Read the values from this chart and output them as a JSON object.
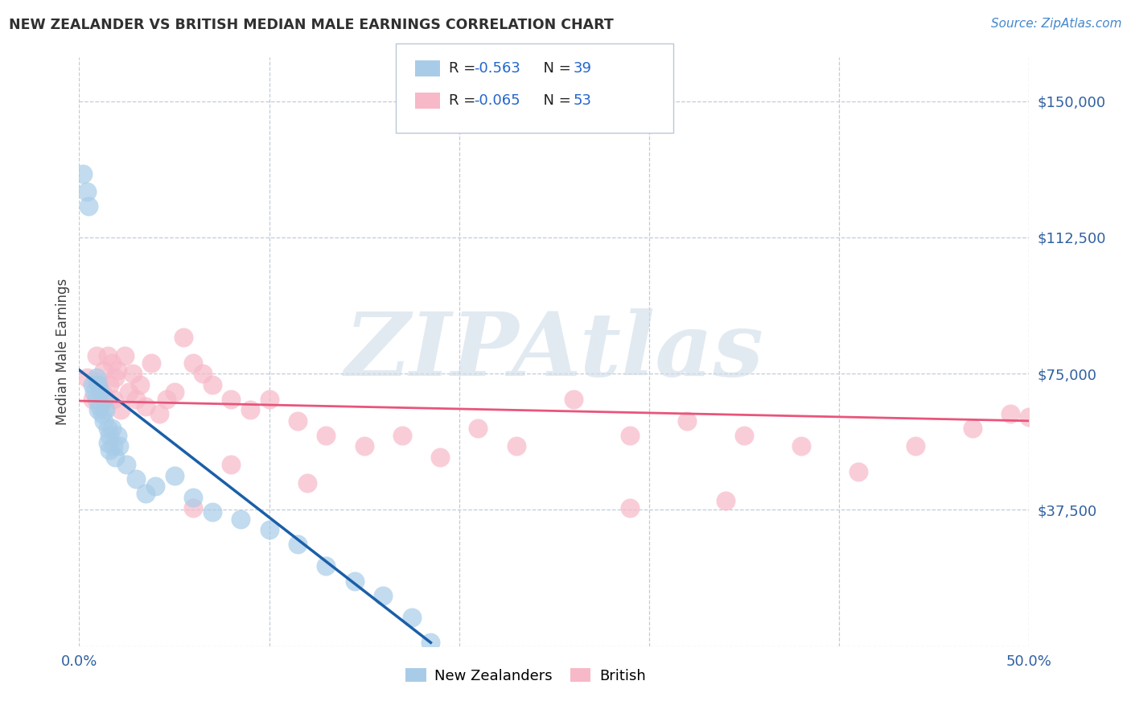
{
  "title": "NEW ZEALANDER VS BRITISH MEDIAN MALE EARNINGS CORRELATION CHART",
  "source": "Source: ZipAtlas.com",
  "ylabel": "Median Male Earnings",
  "xlim": [
    0.0,
    0.5
  ],
  "ylim": [
    0,
    162000
  ],
  "yticks": [
    0,
    37500,
    75000,
    112500,
    150000
  ],
  "ytick_labels": [
    "",
    "$37,500",
    "$75,000",
    "$112,500",
    "$150,000"
  ],
  "xticks": [
    0.0,
    0.1,
    0.2,
    0.3,
    0.4,
    0.5
  ],
  "xtick_labels": [
    "0.0%",
    "",
    "",
    "",
    "",
    "50.0%"
  ],
  "nz_color": "#a8cce8",
  "british_color": "#f7b8c8",
  "nz_line_color": "#1a5fa8",
  "british_line_color": "#e8557a",
  "background_color": "#ffffff",
  "watermark": "ZIPAtlas",
  "watermark_color": "#d0dce8",
  "nz_x": [
    0.002,
    0.004,
    0.005,
    0.007,
    0.008,
    0.009,
    0.009,
    0.01,
    0.01,
    0.011,
    0.011,
    0.012,
    0.013,
    0.013,
    0.014,
    0.015,
    0.015,
    0.016,
    0.016,
    0.017,
    0.018,
    0.019,
    0.02,
    0.021,
    0.025,
    0.03,
    0.035,
    0.04,
    0.05,
    0.06,
    0.07,
    0.085,
    0.1,
    0.115,
    0.13,
    0.145,
    0.16,
    0.175,
    0.185
  ],
  "nz_y": [
    130000,
    125000,
    121000,
    72000,
    70000,
    74000,
    68000,
    72000,
    65000,
    70000,
    66000,
    64000,
    68000,
    62000,
    65000,
    60000,
    56000,
    58000,
    54000,
    60000,
    55000,
    52000,
    58000,
    55000,
    50000,
    46000,
    42000,
    44000,
    47000,
    41000,
    37000,
    35000,
    32000,
    28000,
    22000,
    18000,
    14000,
    8000,
    1000
  ],
  "br_x": [
    0.004,
    0.007,
    0.009,
    0.01,
    0.012,
    0.013,
    0.014,
    0.015,
    0.016,
    0.017,
    0.018,
    0.019,
    0.02,
    0.022,
    0.024,
    0.026,
    0.028,
    0.03,
    0.032,
    0.035,
    0.038,
    0.042,
    0.046,
    0.05,
    0.055,
    0.06,
    0.065,
    0.07,
    0.08,
    0.09,
    0.1,
    0.115,
    0.13,
    0.15,
    0.17,
    0.19,
    0.21,
    0.23,
    0.26,
    0.29,
    0.32,
    0.35,
    0.38,
    0.41,
    0.44,
    0.47,
    0.34,
    0.29,
    0.12,
    0.08,
    0.06,
    0.49,
    0.5
  ],
  "br_y": [
    74000,
    68000,
    80000,
    72000,
    70000,
    76000,
    68000,
    80000,
    72000,
    78000,
    68000,
    74000,
    76000,
    65000,
    80000,
    70000,
    75000,
    68000,
    72000,
    66000,
    78000,
    64000,
    68000,
    70000,
    85000,
    78000,
    75000,
    72000,
    68000,
    65000,
    68000,
    62000,
    58000,
    55000,
    58000,
    52000,
    60000,
    55000,
    68000,
    58000,
    62000,
    58000,
    55000,
    48000,
    55000,
    60000,
    40000,
    38000,
    45000,
    50000,
    38000,
    64000,
    63000
  ],
  "nz_line_x0": 0.0,
  "nz_line_y0": 76000,
  "nz_line_x1": 0.185,
  "nz_line_y1": 1000,
  "br_line_x0": 0.0,
  "br_line_y0": 67500,
  "br_line_x1": 0.5,
  "br_line_y1": 62000
}
